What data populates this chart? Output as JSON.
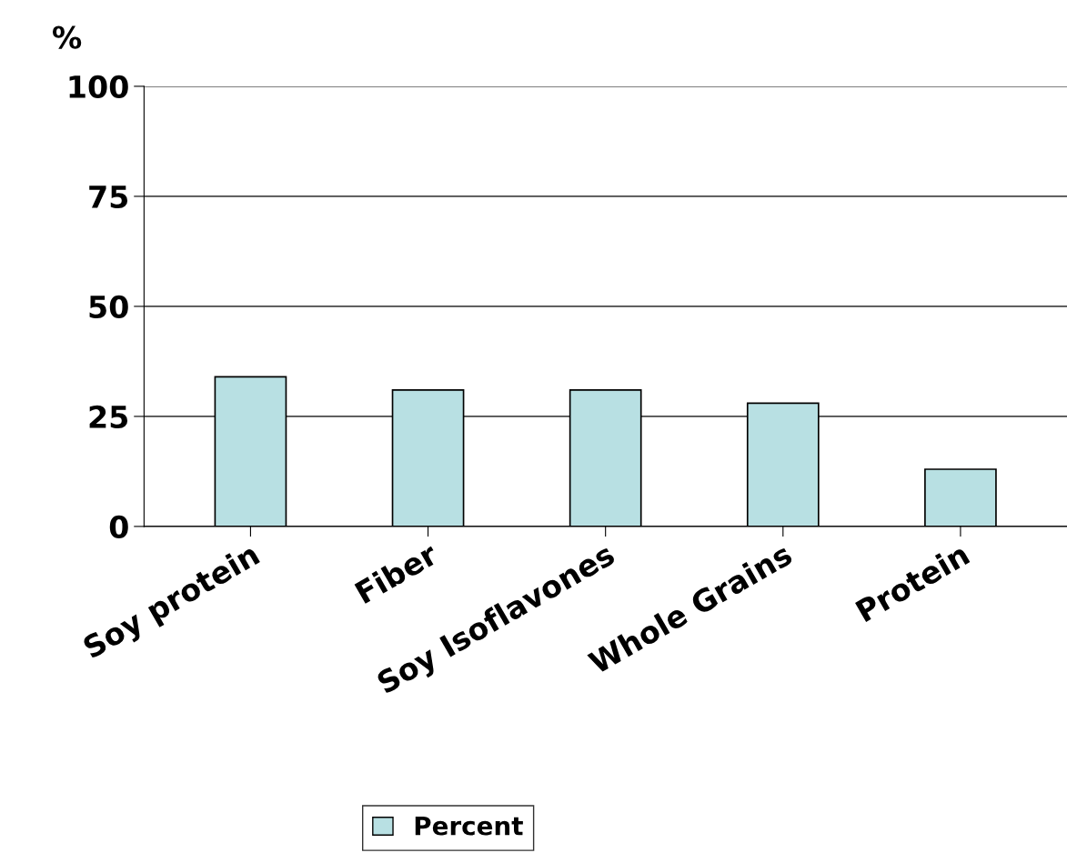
{
  "chart_data": {
    "type": "bar",
    "ylabel": "%",
    "categories": [
      "Soy protein",
      "Fiber",
      "Soy Isoflavones",
      "Whole Grains",
      "Protein"
    ],
    "series": [
      {
        "name": "Percent",
        "color": "#b8e0e3",
        "values": [
          34,
          31,
          31,
          28,
          13
        ]
      }
    ],
    "ylim": [
      0,
      100
    ],
    "yticks": [
      0,
      25,
      50,
      75,
      100
    ],
    "grid": "y",
    "legend": "bottom"
  }
}
